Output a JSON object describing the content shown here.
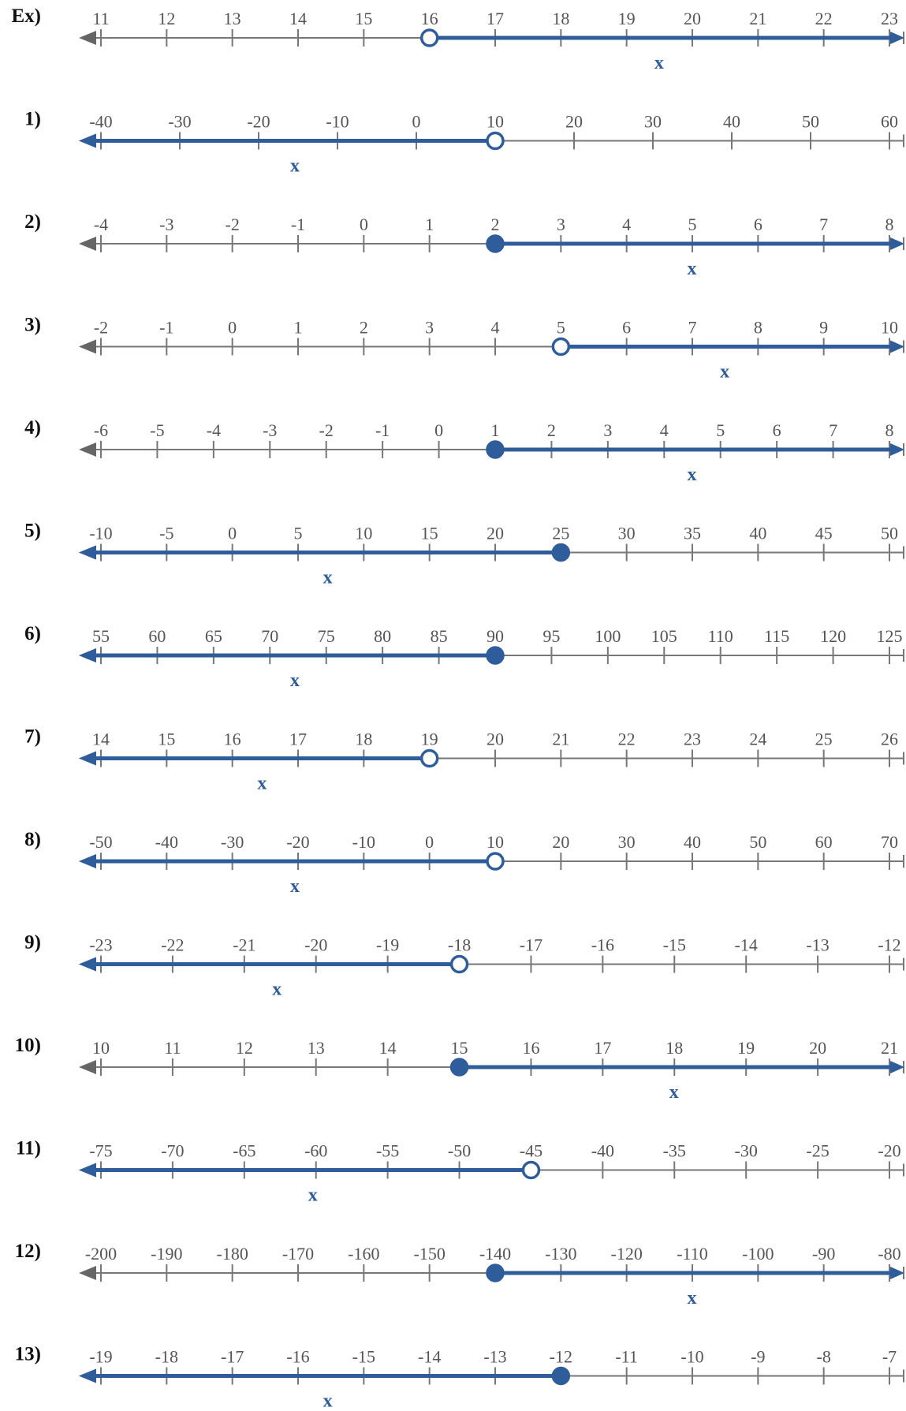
{
  "colors": {
    "line": "#777777",
    "arrow": "#666666",
    "highlight": "#2f5d9b"
  },
  "problems": [
    {
      "label": "Ex)",
      "ticks": [
        "11",
        "12",
        "13",
        "14",
        "15",
        "16",
        "17",
        "18",
        "19",
        "20",
        "21",
        "22",
        "23"
      ],
      "point_index": 5,
      "filled": false,
      "direction": "right",
      "variable": "x"
    },
    {
      "label": "1)",
      "ticks": [
        "-40",
        "-30",
        "-20",
        "-10",
        "0",
        "10",
        "20",
        "30",
        "40",
        "50",
        "60"
      ],
      "point_index": 5,
      "filled": false,
      "direction": "left",
      "variable": "x"
    },
    {
      "label": "2)",
      "ticks": [
        "-4",
        "-3",
        "-2",
        "-1",
        "0",
        "1",
        "2",
        "3",
        "4",
        "5",
        "6",
        "7",
        "8"
      ],
      "point_index": 6,
      "filled": true,
      "direction": "right",
      "variable": "x"
    },
    {
      "label": "3)",
      "ticks": [
        "-2",
        "-1",
        "0",
        "1",
        "2",
        "3",
        "4",
        "5",
        "6",
        "7",
        "8",
        "9",
        "10"
      ],
      "point_index": 7,
      "filled": false,
      "direction": "right",
      "variable": "x"
    },
    {
      "label": "4)",
      "ticks": [
        "-6",
        "-5",
        "-4",
        "-3",
        "-2",
        "-1",
        "0",
        "1",
        "2",
        "3",
        "4",
        "5",
        "6",
        "7",
        "8"
      ],
      "point_index": 7,
      "filled": true,
      "direction": "right",
      "variable": "x"
    },
    {
      "label": "5)",
      "ticks": [
        "-10",
        "-5",
        "0",
        "5",
        "10",
        "15",
        "20",
        "25",
        "30",
        "35",
        "40",
        "45",
        "50"
      ],
      "point_index": 7,
      "filled": true,
      "direction": "left",
      "variable": "x"
    },
    {
      "label": "6)",
      "ticks": [
        "55",
        "60",
        "65",
        "70",
        "75",
        "80",
        "85",
        "90",
        "95",
        "100",
        "105",
        "110",
        "115",
        "120",
        "125"
      ],
      "point_index": 7,
      "filled": true,
      "direction": "left",
      "variable": "x"
    },
    {
      "label": "7)",
      "ticks": [
        "14",
        "15",
        "16",
        "17",
        "18",
        "19",
        "20",
        "21",
        "22",
        "23",
        "24",
        "25",
        "26"
      ],
      "point_index": 5,
      "filled": false,
      "direction": "left",
      "variable": "x"
    },
    {
      "label": "8)",
      "ticks": [
        "-50",
        "-40",
        "-30",
        "-20",
        "-10",
        "0",
        "10",
        "20",
        "30",
        "40",
        "50",
        "60",
        "70"
      ],
      "point_index": 6,
      "filled": false,
      "direction": "left",
      "variable": "x"
    },
    {
      "label": "9)",
      "ticks": [
        "-23",
        "-22",
        "-21",
        "-20",
        "-19",
        "-18",
        "-17",
        "-16",
        "-15",
        "-14",
        "-13",
        "-12"
      ],
      "point_index": 5,
      "filled": false,
      "direction": "left",
      "variable": "x"
    },
    {
      "label": "10)",
      "ticks": [
        "10",
        "11",
        "12",
        "13",
        "14",
        "15",
        "16",
        "17",
        "18",
        "19",
        "20",
        "21"
      ],
      "point_index": 5,
      "filled": true,
      "direction": "right",
      "variable": "x"
    },
    {
      "label": "11)",
      "ticks": [
        "-75",
        "-70",
        "-65",
        "-60",
        "-55",
        "-50",
        "-45",
        "-40",
        "-35",
        "-30",
        "-25",
        "-20"
      ],
      "point_index": 6,
      "filled": false,
      "direction": "left",
      "variable": "x"
    },
    {
      "label": "12)",
      "ticks": [
        "-200",
        "-190",
        "-180",
        "-170",
        "-160",
        "-150",
        "-140",
        "-130",
        "-120",
        "-110",
        "-100",
        "-90",
        "-80"
      ],
      "point_index": 6,
      "filled": true,
      "direction": "right",
      "variable": "x"
    },
    {
      "label": "13)",
      "ticks": [
        "-19",
        "-18",
        "-17",
        "-16",
        "-15",
        "-14",
        "-13",
        "-12",
        "-11",
        "-10",
        "-9",
        "-8",
        "-7"
      ],
      "point_index": 7,
      "filled": true,
      "direction": "left",
      "variable": "x"
    }
  ]
}
